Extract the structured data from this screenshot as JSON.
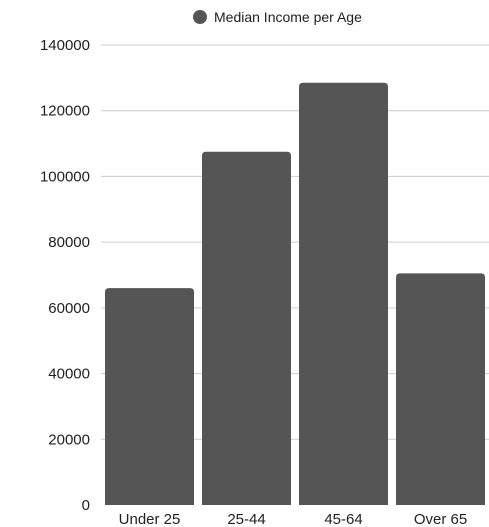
{
  "chart_data": {
    "type": "bar",
    "categories": [
      "Under 25",
      "25-44",
      "45-64",
      "Over 65"
    ],
    "series": [
      {
        "name": "Median Income per Age",
        "values": [
          66000,
          107500,
          128500,
          70500
        ]
      }
    ],
    "ylim": [
      0,
      140000
    ],
    "yticks": [
      0,
      20000,
      40000,
      60000,
      80000,
      100000,
      120000,
      140000
    ],
    "grid": true,
    "legend_position": "top",
    "colors": {
      "bar": "#555555",
      "grid": "#cccccc",
      "text": "#222222"
    }
  }
}
